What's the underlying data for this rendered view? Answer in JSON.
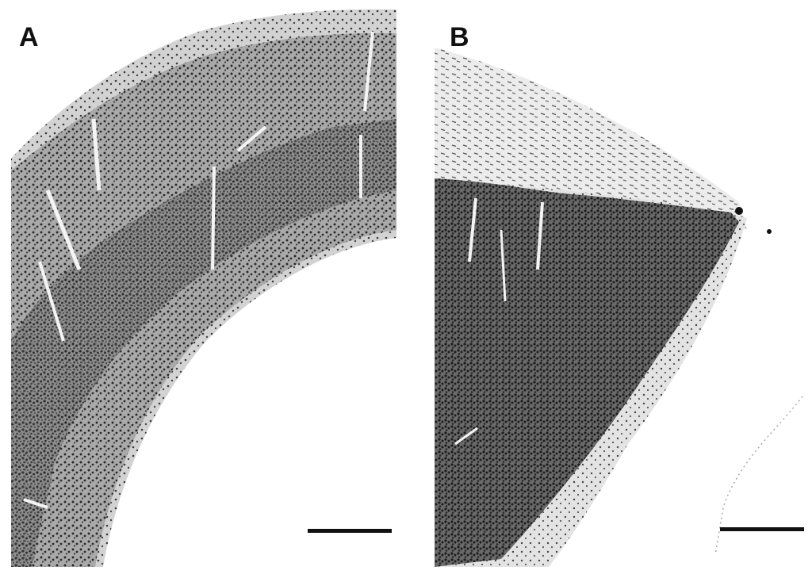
{
  "figure": {
    "panels": [
      {
        "id": "A",
        "label": "A"
      },
      {
        "id": "B",
        "label": "B"
      }
    ],
    "colors": {
      "background": "#ffffff",
      "cell": "#2a2a2a",
      "dense_tissue": "#6e6e6e",
      "sparse_tissue": "#b8b8b8",
      "label": "#111111"
    }
  }
}
